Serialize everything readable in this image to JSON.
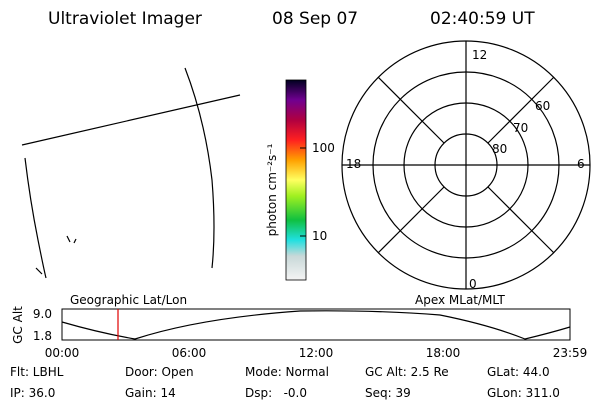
{
  "header": {
    "title": "Ultraviolet Imager",
    "date": "08 Sep 07",
    "time": "02:40:59 UT"
  },
  "colorbar": {
    "label": "photon cm⁻²s⁻¹",
    "ticks": [
      "100",
      "10"
    ]
  },
  "polar": {
    "mlt_labels": [
      "12",
      "6",
      "18",
      "0"
    ],
    "lat_labels": [
      "60",
      "70",
      "80"
    ]
  },
  "altitude": {
    "axis_label": "GC Alt",
    "yticks": [
      "9.0",
      "1.8"
    ],
    "left_label": "Geographic Lat/Lon",
    "right_label": "Apex MLat/MLT",
    "xticks": [
      "00:00",
      "06:00",
      "12:00",
      "18:00",
      "23:59"
    ]
  },
  "info": {
    "rows": [
      [
        "Flt: LBHL",
        "Door: Open",
        "Mode: Normal",
        "GC Alt: 2.5 Re",
        "GLat: 44.0"
      ],
      [
        "IP: 36.0",
        "Gain: 14",
        "Dsp:   -0.0",
        "Seq: 39",
        "GLon: 311.0"
      ]
    ]
  }
}
